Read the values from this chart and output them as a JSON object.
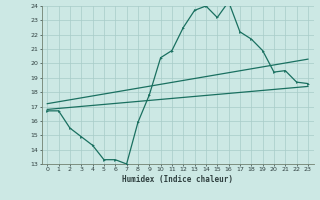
{
  "bg_color": "#cce8e4",
  "grid_color": "#a8ccc8",
  "line_color": "#1a7060",
  "xlabel": "Humidex (Indice chaleur)",
  "xlim": [
    -0.5,
    23.5
  ],
  "ylim": [
    13,
    24
  ],
  "xticks": [
    0,
    1,
    2,
    3,
    4,
    5,
    6,
    7,
    8,
    9,
    10,
    11,
    12,
    13,
    14,
    15,
    16,
    17,
    18,
    19,
    20,
    21,
    22,
    23
  ],
  "yticks": [
    13,
    14,
    15,
    16,
    17,
    18,
    19,
    20,
    21,
    22,
    23,
    24
  ],
  "zigzag_x": [
    0,
    1,
    2,
    3,
    4,
    5,
    6,
    7,
    8,
    9,
    10,
    11,
    12,
    13,
    14,
    15,
    16,
    17,
    18,
    19,
    20,
    21,
    22,
    23
  ],
  "zigzag_y": [
    16.7,
    16.7,
    15.5,
    14.9,
    14.3,
    13.3,
    13.3,
    13.0,
    15.9,
    17.8,
    20.4,
    20.9,
    22.5,
    23.7,
    24.0,
    23.2,
    24.3,
    22.2,
    21.7,
    20.9,
    19.4,
    19.5,
    18.7,
    18.6
  ],
  "lower_line_x": [
    0,
    23
  ],
  "lower_line_y": [
    16.8,
    18.4
  ],
  "upper_line_x": [
    0,
    23
  ],
  "upper_line_y": [
    17.2,
    20.3
  ]
}
